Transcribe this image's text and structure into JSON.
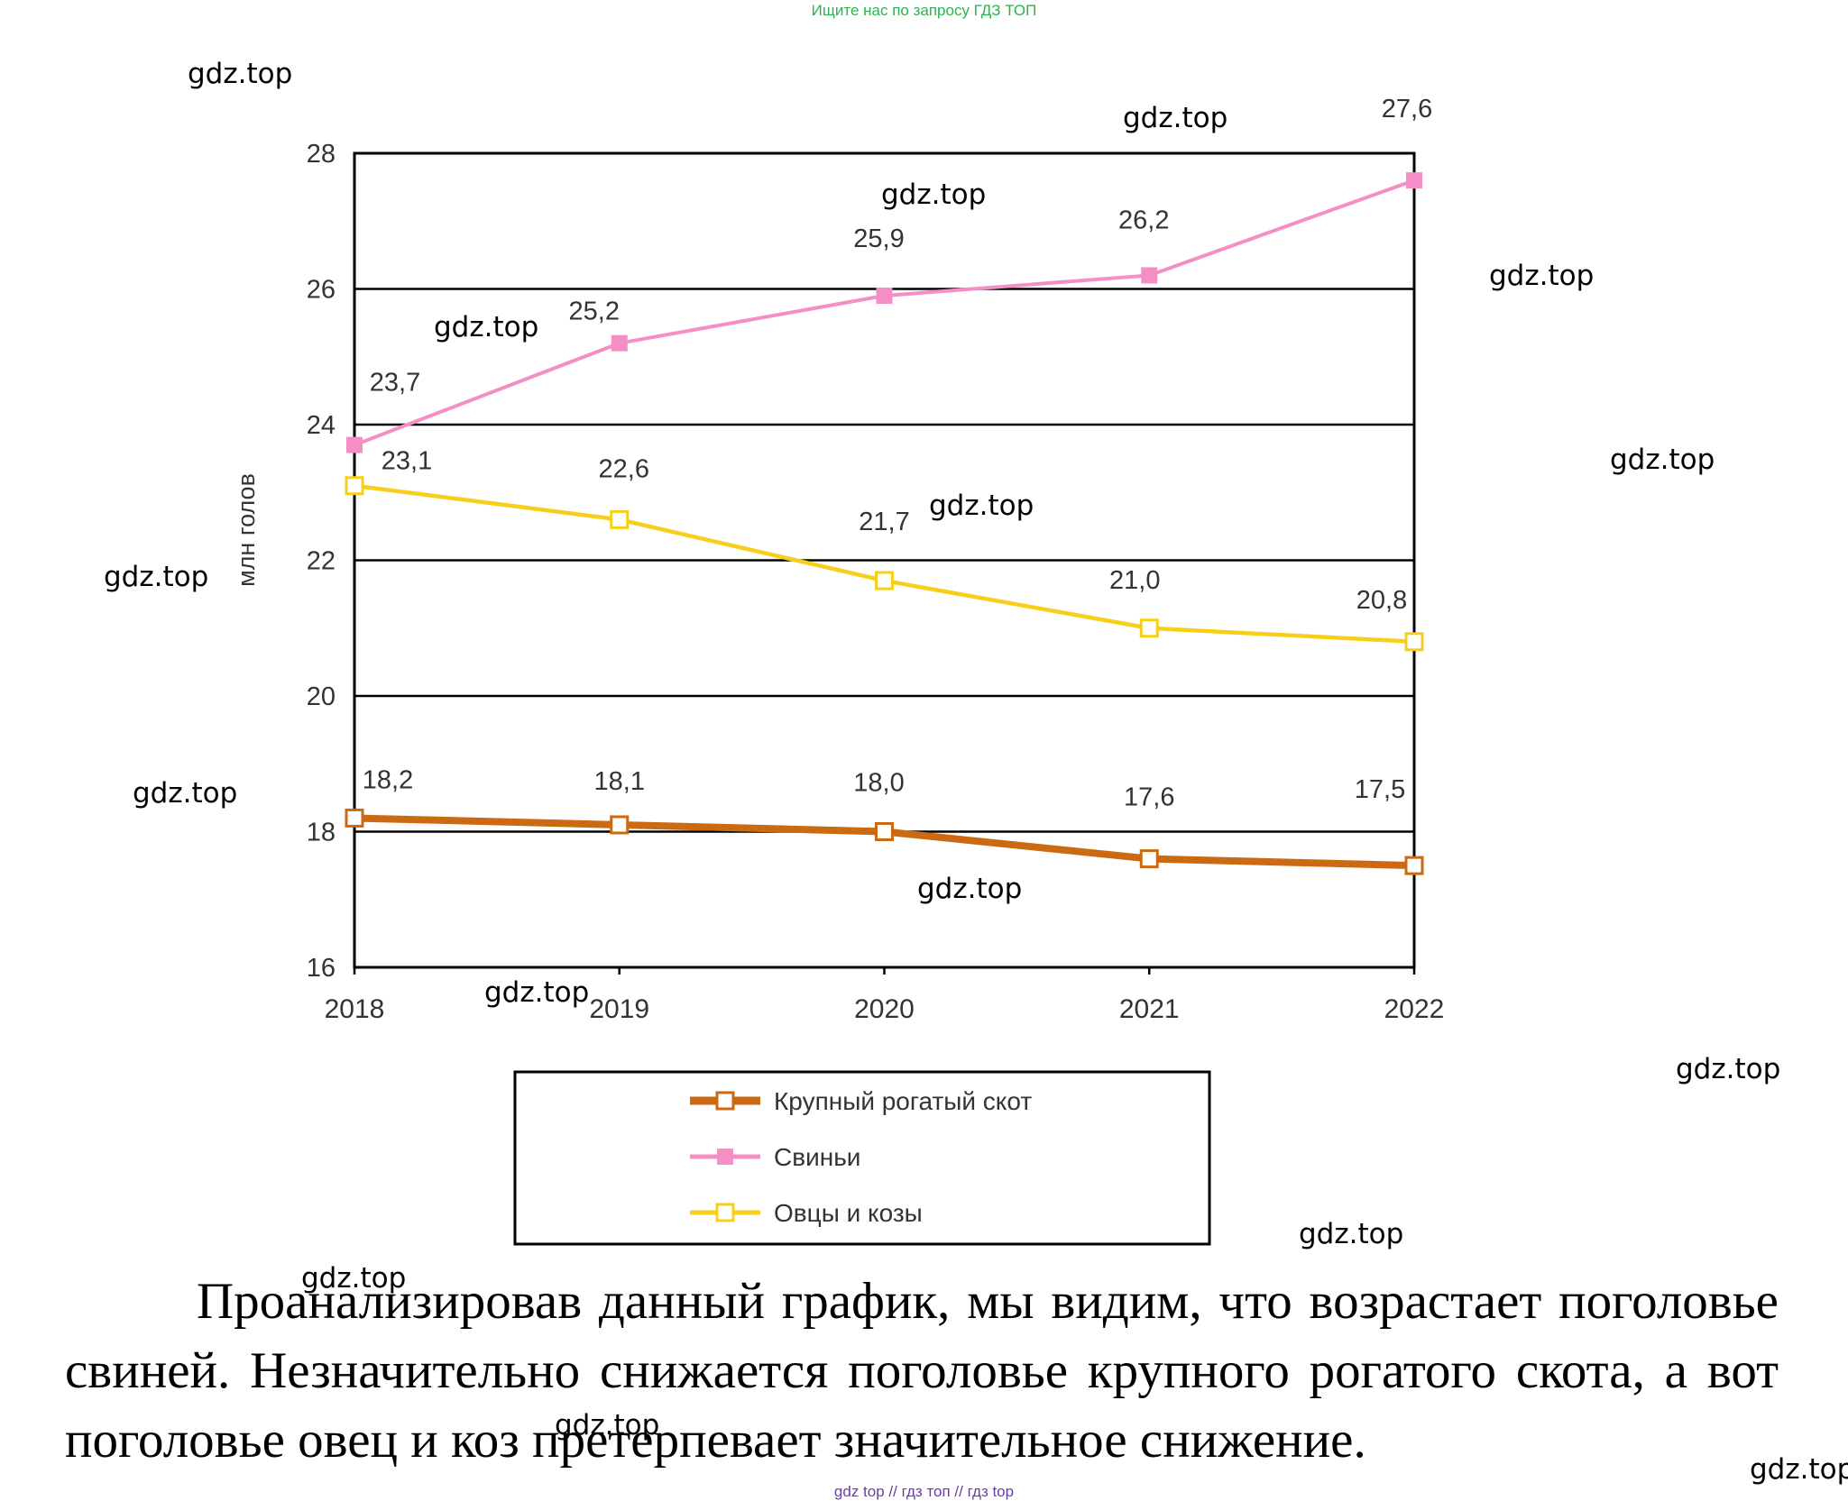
{
  "banner": "Ищите нас по запросу ГДЗ ТОП",
  "watermark_text": "gdz.top",
  "chart_data": {
    "type": "line",
    "title": "",
    "xlabel": "",
    "ylabel": "млн голов",
    "ylim": [
      16,
      28
    ],
    "yticks": [
      "16",
      "18",
      "20",
      "22",
      "24",
      "26",
      "28"
    ],
    "categories": [
      "2018",
      "2019",
      "2020",
      "2021",
      "2022"
    ],
    "grid": "horizontal",
    "legend_position": "bottom",
    "series": [
      {
        "name": "Крупный рогатый скот",
        "values": [
          18.2,
          18.1,
          18.0,
          17.6,
          17.5
        ],
        "labels": [
          "18,2",
          "18,1",
          "18,0",
          "17,6",
          "17,5"
        ],
        "color": "#cc6a14",
        "marker": "hollow-square"
      },
      {
        "name": "Свиньи",
        "values": [
          23.7,
          25.2,
          25.9,
          26.2,
          27.6
        ],
        "labels": [
          "23,7",
          "25,2",
          "25,9",
          "26,2",
          "27,6"
        ],
        "color": "#f48fc6",
        "marker": "filled-square"
      },
      {
        "name": "Овцы и козы",
        "values": [
          23.1,
          22.6,
          21.7,
          21.0,
          20.8
        ],
        "labels": [
          "23,1",
          "22,6",
          "21,7",
          "21,0",
          "20,8"
        ],
        "color": "#f7cf1b",
        "marker": "hollow-square"
      }
    ]
  },
  "paragraph": "Проанализировав данный график, мы видим, что возрастает поголовье свиней. Незначительно снижается поголовье крупного рогатого скота, а вот поголовье овец и коз претерпевает значительное снижение.",
  "footer": "gdz top  //  гдз топ  //  гдз top"
}
